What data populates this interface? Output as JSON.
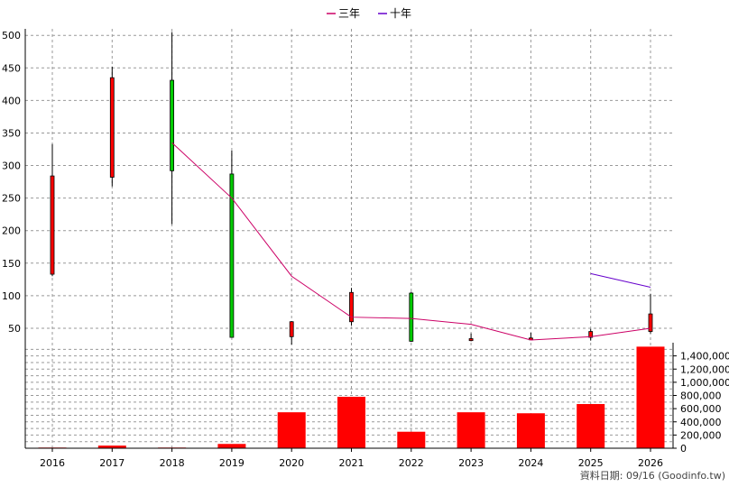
{
  "chart_data": {
    "type": "candlestick-with-volume",
    "years": [
      "2016",
      "2017",
      "2018",
      "2019",
      "2020",
      "2021",
      "2022",
      "2023",
      "2024",
      "2025",
      "2026"
    ],
    "price_axis": {
      "ylim": [
        25,
        510
      ],
      "ticks": [
        50,
        100,
        150,
        200,
        250,
        300,
        350,
        400,
        450,
        500
      ]
    },
    "candles": [
      {
        "year": "2016",
        "open": 133,
        "close": 284,
        "high": 333,
        "low": 130,
        "color": "#ff0000"
      },
      {
        "year": "2017",
        "open": 282,
        "close": 435,
        "high": 452,
        "low": 268,
        "color": "#ff0000"
      },
      {
        "year": "2018",
        "open": 431,
        "close": 292,
        "high": 505,
        "low": 210,
        "color": "#00cc00"
      },
      {
        "year": "2019",
        "open": 287,
        "close": 36,
        "high": 323,
        "low": 36,
        "color": "#00cc00"
      },
      {
        "year": "2020",
        "open": 37,
        "close": 60,
        "high": 61,
        "low": 25,
        "color": "#ff0000"
      },
      {
        "year": "2021",
        "open": 60,
        "close": 105,
        "high": 112,
        "low": 54,
        "color": "#ff0000"
      },
      {
        "year": "2022",
        "open": 104,
        "close": 30,
        "high": 106,
        "low": 29,
        "color": "#00cc00"
      },
      {
        "year": "2023",
        "open": 31,
        "close": 34,
        "high": 42,
        "low": 30,
        "color": "#ff0000"
      },
      {
        "year": "2024",
        "open": 34,
        "close": 35,
        "high": 43,
        "low": 33,
        "color": "#ff0000"
      },
      {
        "year": "2025",
        "open": 36,
        "close": 45,
        "high": 49,
        "low": 31,
        "color": "#ff0000"
      },
      {
        "year": "2026",
        "open": 45,
        "close": 72,
        "high": 103,
        "low": 42,
        "color": "#ff0000"
      }
    ],
    "lines": [
      {
        "name": "三年",
        "color": "#cc0066",
        "points": [
          [
            "2018",
            335
          ],
          [
            "2019",
            250
          ],
          [
            "2020",
            130
          ],
          [
            "2021",
            67
          ],
          [
            "2022",
            65
          ],
          [
            "2023",
            56
          ],
          [
            "2024",
            32
          ],
          [
            "2025",
            37
          ],
          [
            "2026",
            50
          ]
        ]
      },
      {
        "name": "十年",
        "color": "#6600cc",
        "points": [
          [
            "2025",
            134
          ],
          [
            "2026",
            113
          ]
        ]
      }
    ],
    "volume_axis": {
      "ylim": [
        0,
        1600000
      ],
      "ticks": [
        0,
        200000,
        400000,
        600000,
        800000,
        1000000,
        1200000,
        1400000
      ],
      "tick_labels": [
        "0",
        "200,000",
        "400,000",
        "600,000",
        "800,000",
        "1,000,000",
        "1,200,000",
        "1,400,000"
      ]
    },
    "volume": [
      {
        "year": "2016",
        "value": 10000
      },
      {
        "year": "2017",
        "value": 40000
      },
      {
        "year": "2018",
        "value": 10000
      },
      {
        "year": "2019",
        "value": 65000
      },
      {
        "year": "2020",
        "value": 545000
      },
      {
        "year": "2021",
        "value": 780000
      },
      {
        "year": "2022",
        "value": 250000
      },
      {
        "year": "2023",
        "value": 545000
      },
      {
        "year": "2024",
        "value": 530000
      },
      {
        "year": "2025",
        "value": 670000
      },
      {
        "year": "2026",
        "value": 1540000
      }
    ],
    "volume_color": "#ff0000",
    "legend": [
      {
        "label": "三年",
        "color": "#cc0066"
      },
      {
        "label": "十年",
        "color": "#6600cc"
      }
    ],
    "grid": true,
    "footer": "資料日期: 09/16  (Goodinfo.tw)"
  }
}
